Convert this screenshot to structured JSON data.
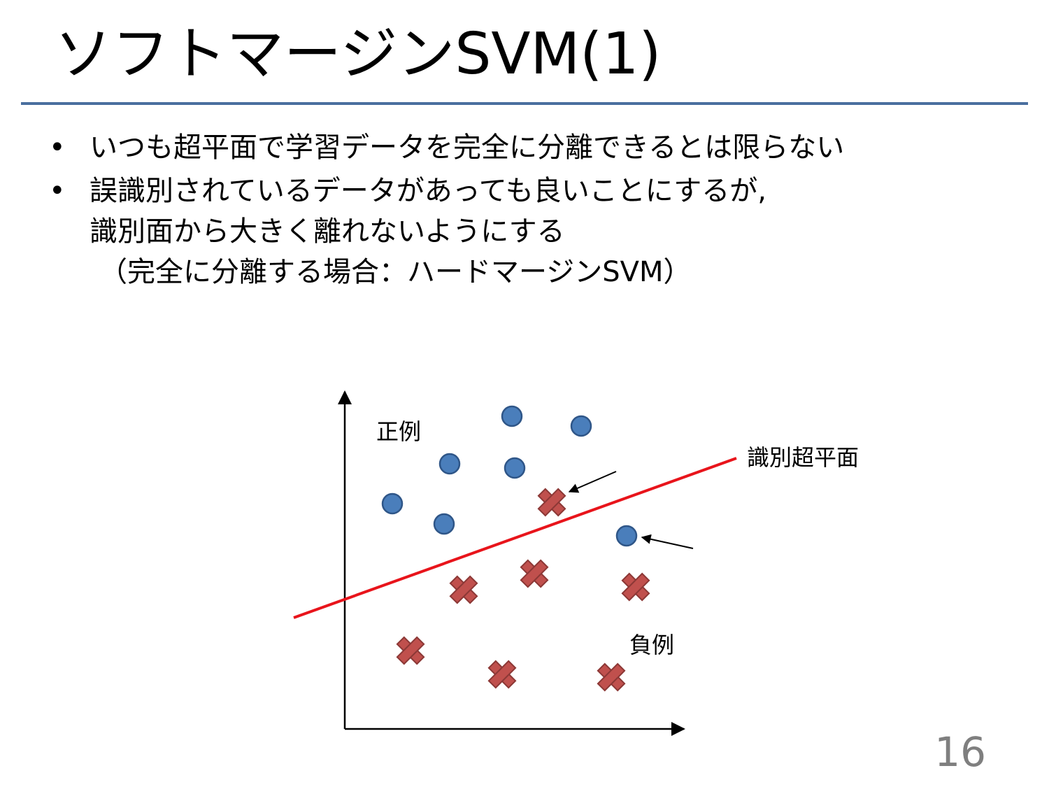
{
  "slide": {
    "title": "ソフトマージンSVM(1)",
    "page_number": "16"
  },
  "bullets": [
    {
      "marker": "•",
      "lines": [
        "いつも超平面で学習データを完全に分離できるとは限らない"
      ]
    },
    {
      "marker": "•",
      "lines": [
        "誤識別されているデータがあっても良いことにするが,",
        "識別面から大きく離れないようにする",
        "（完全に分離する場合：ハードマージンSVM）"
      ]
    }
  ],
  "diagram": {
    "positive_label": "正例",
    "negative_label": "負例",
    "hyperplane_label": "識別超平面",
    "colors": {
      "positive_marker": "#4a7ebb",
      "negative_marker": "#c0504d",
      "hyperplane": "#e8141b",
      "axes": "#000000"
    },
    "positive_points_icon": "circle",
    "negative_points_icon": "x-mark"
  }
}
